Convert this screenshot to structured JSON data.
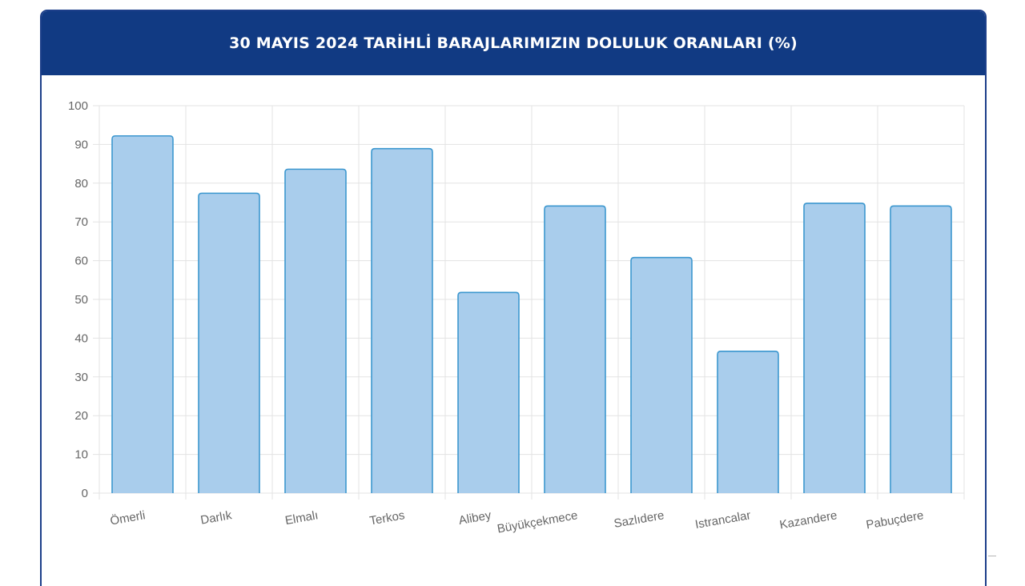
{
  "header": {
    "title": "30 MAYIS 2024 TARİHLİ BARAJLARIMIZIN DOLULUK ORANLARI (%)",
    "background": "#113a83"
  },
  "chart_data": {
    "type": "bar",
    "title": "30 MAYIS 2024 TARİHLİ BARAJLARIMIZIN DOLULUK ORANLARI (%)",
    "xlabel": "",
    "ylabel": "",
    "categories": [
      "Ömerli",
      "Darlık",
      "Elmalı",
      "Terkos",
      "Alibey",
      "Büyükçekmece",
      "Sazlıdere",
      "Istrancalar",
      "Kazandere",
      "Pabuçdere"
    ],
    "values": [
      92.2,
      77.4,
      83.6,
      88.9,
      51.8,
      74.1,
      60.8,
      36.6,
      74.8,
      74.1
    ],
    "ylim": [
      0,
      100
    ],
    "yticks": [
      0,
      10,
      20,
      30,
      40,
      50,
      60,
      70,
      80,
      90,
      100
    ],
    "grid": true,
    "legend": "none",
    "colors": {
      "bar_fill": "#a9cdec",
      "bar_stroke": "#3c97cf",
      "grid": "#e3e3e3",
      "text": "#666666"
    }
  }
}
